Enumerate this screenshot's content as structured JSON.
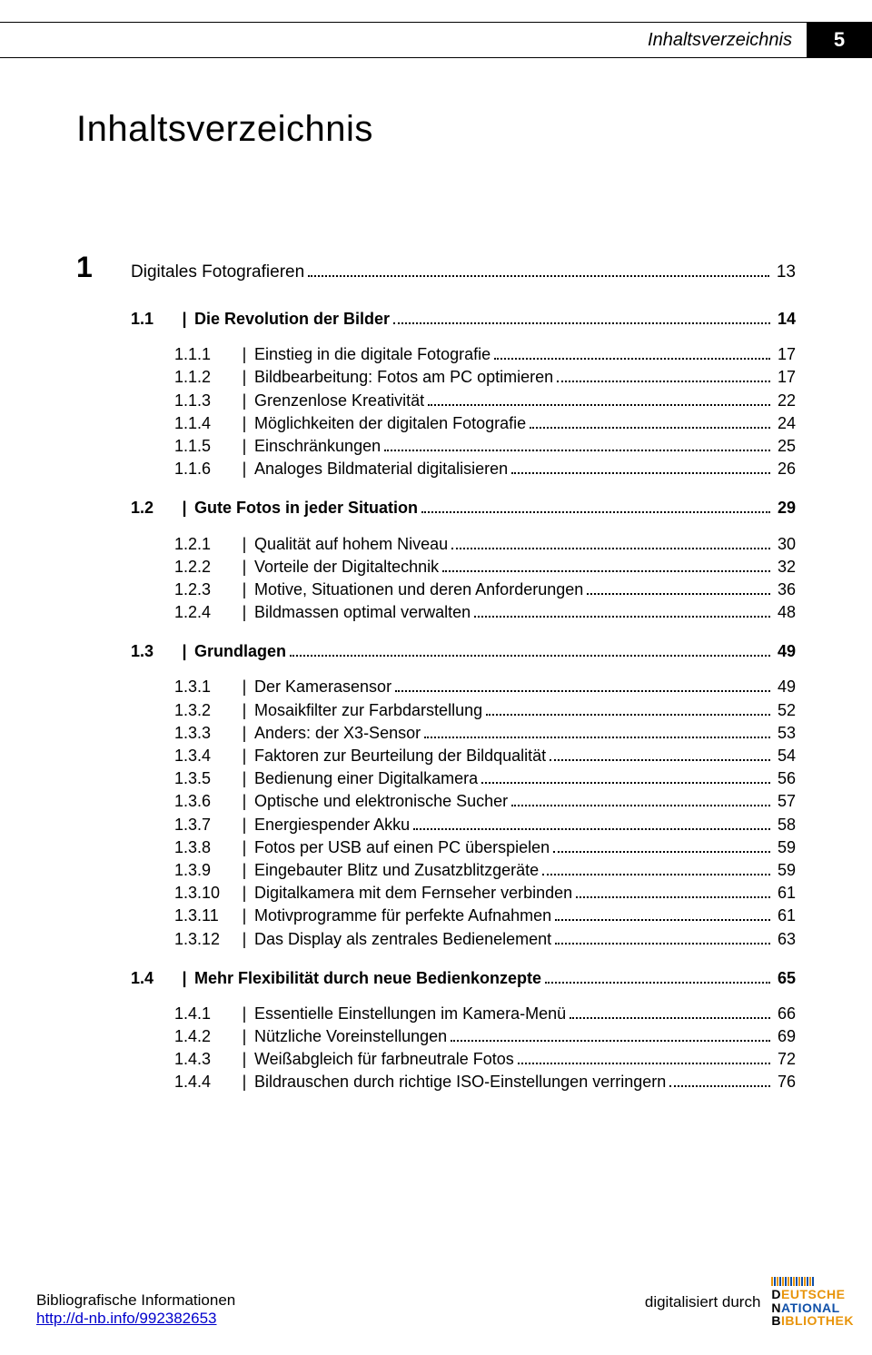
{
  "header": {
    "label": "Inhaltsverzeichnis",
    "page": "5"
  },
  "title": "Inhaltsverzeichnis",
  "chapter": {
    "num": "1",
    "title": "Digitales Fotografieren",
    "page": "13"
  },
  "sections": [
    {
      "num": "1.1",
      "title": "Die Revolution der Bilder",
      "page": "14",
      "subs": [
        {
          "num": "1.1.1",
          "title": "Einstieg in die digitale Fotografie",
          "page": "17"
        },
        {
          "num": "1.1.2",
          "title": "Bildbearbeitung: Fotos am PC optimieren",
          "page": "17"
        },
        {
          "num": "1.1.3",
          "title": "Grenzenlose Kreativität",
          "page": "22"
        },
        {
          "num": "1.1.4",
          "title": "Möglichkeiten der digitalen Fotografie",
          "page": "24"
        },
        {
          "num": "1.1.5",
          "title": "Einschränkungen",
          "page": "25"
        },
        {
          "num": "1.1.6",
          "title": "Analoges Bildmaterial digitalisieren",
          "page": "26"
        }
      ]
    },
    {
      "num": "1.2",
      "title": "Gute Fotos in jeder Situation",
      "page": "29",
      "subs": [
        {
          "num": "1.2.1",
          "title": "Qualität auf hohem Niveau",
          "page": "30"
        },
        {
          "num": "1.2.2",
          "title": "Vorteile der Digitaltechnik",
          "page": "32"
        },
        {
          "num": "1.2.3",
          "title": "Motive, Situationen und deren Anforderungen",
          "page": "36"
        },
        {
          "num": "1.2.4",
          "title": "Bildmassen optimal verwalten",
          "page": "48"
        }
      ]
    },
    {
      "num": "1.3",
      "title": "Grundlagen",
      "page": "49",
      "subs": [
        {
          "num": "1.3.1",
          "title": "Der Kamerasensor",
          "page": "49"
        },
        {
          "num": "1.3.2",
          "title": "Mosaikfilter zur Farbdarstellung",
          "page": "52"
        },
        {
          "num": "1.3.3",
          "title": "Anders: der X3-Sensor",
          "page": "53"
        },
        {
          "num": "1.3.4",
          "title": "Faktoren zur Beurteilung der Bildqualität",
          "page": "54"
        },
        {
          "num": "1.3.5",
          "title": "Bedienung einer Digitalkamera",
          "page": "56"
        },
        {
          "num": "1.3.6",
          "title": "Optische und elektronische Sucher",
          "page": "57"
        },
        {
          "num": "1.3.7",
          "title": "Energiespender Akku",
          "page": "58"
        },
        {
          "num": "1.3.8",
          "title": "Fotos per USB auf einen PC überspielen",
          "page": "59"
        },
        {
          "num": "1.3.9",
          "title": "Eingebauter Blitz und Zusatzblitzgeräte",
          "page": "59"
        },
        {
          "num": "1.3.10",
          "title": "Digitalkamera mit dem Fernseher verbinden",
          "page": "61"
        },
        {
          "num": "1.3.11",
          "title": "Motivprogramme für perfekte Aufnahmen",
          "page": "61"
        },
        {
          "num": "1.3.12",
          "title": "Das Display als zentrales Bedienelement",
          "page": "63"
        }
      ]
    },
    {
      "num": "1.4",
      "title": "Mehr Flexibilität durch neue Bedienkonzepte",
      "page": "65",
      "subs": [
        {
          "num": "1.4.1",
          "title": "Essentielle Einstellungen im Kamera-Menü",
          "page": "66"
        },
        {
          "num": "1.4.2",
          "title": "Nützliche Voreinstellungen",
          "page": "69"
        },
        {
          "num": "1.4.3",
          "title": "Weißabgleich für farbneutrale Fotos",
          "page": "72"
        },
        {
          "num": "1.4.4",
          "title": "Bildrauschen durch richtige ISO-Einstellungen verringern",
          "page": "76"
        }
      ]
    }
  ],
  "footer": {
    "left_text": "Bibliografische Informationen",
    "link": "http://d-nb.info/992382653",
    "right_text": "digitalisiert durch",
    "logo_l1": "DEUTSCHE",
    "logo_l2": "NATIONAL",
    "logo_l3": "BIBLIOTHEK"
  },
  "colors": {
    "text": "#000000",
    "link": "#0000cc",
    "bg": "#ffffff",
    "logo_orange": "#e8940a",
    "logo_blue": "#1050a8"
  }
}
